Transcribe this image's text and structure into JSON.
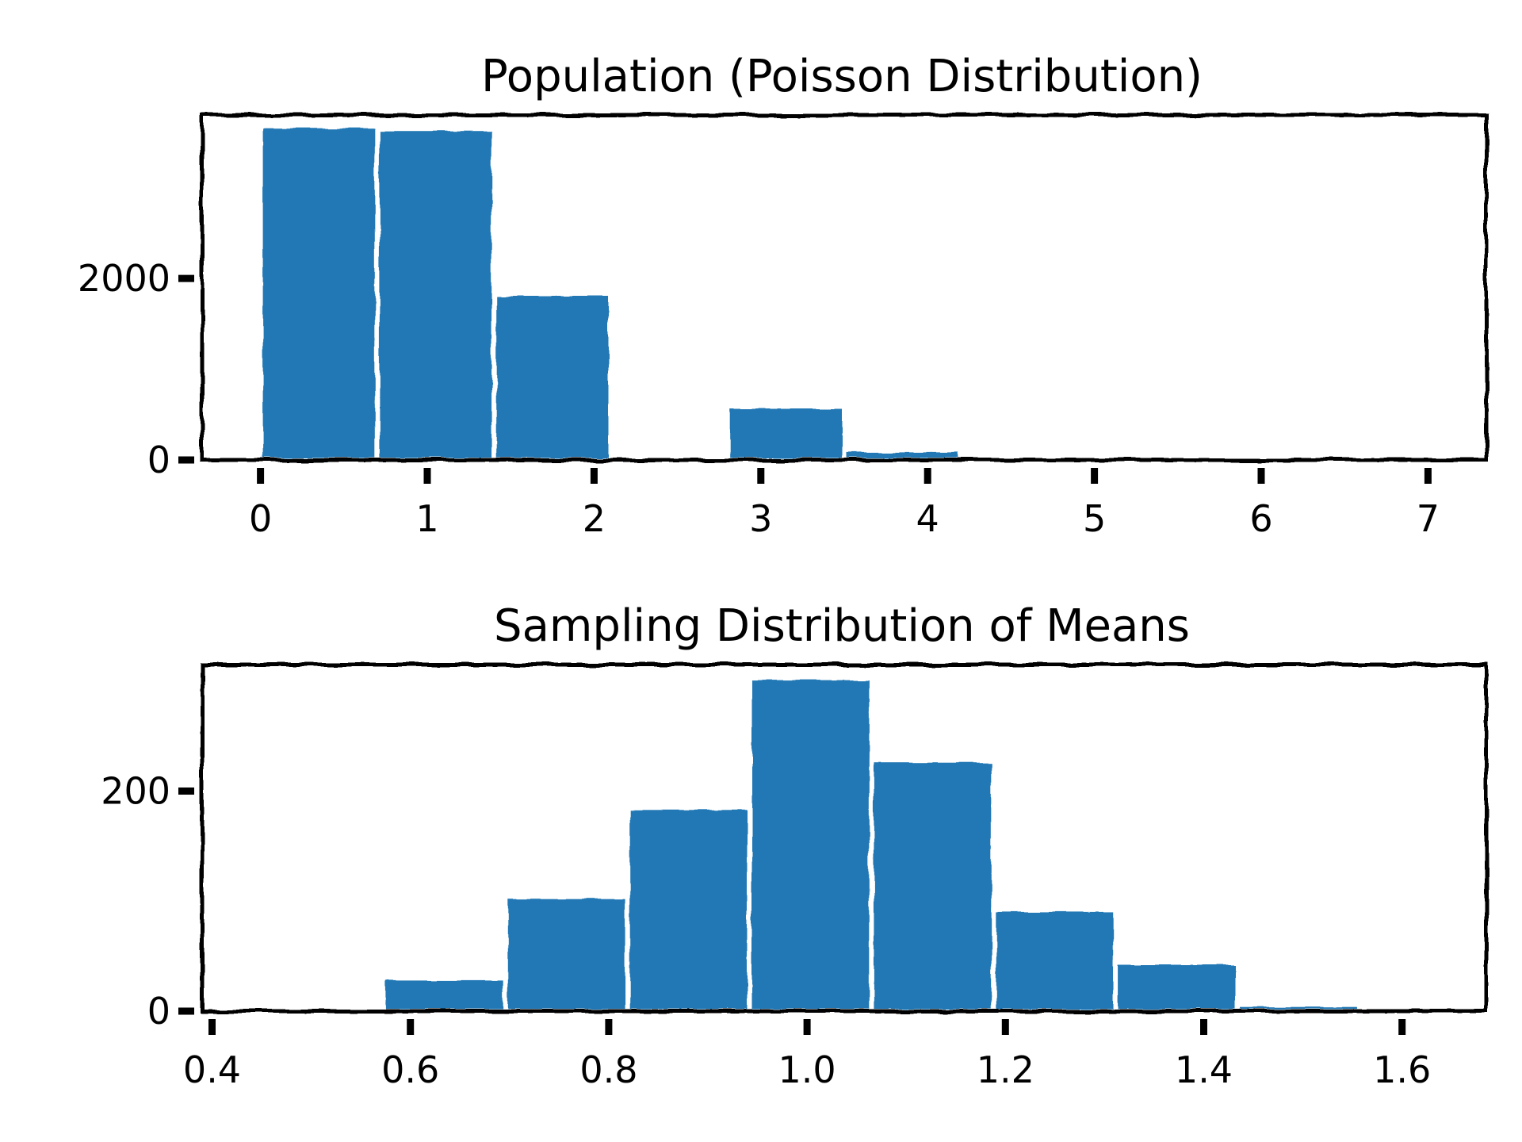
{
  "chart_data": [
    {
      "type": "bar",
      "title": "Population (Poisson Distribution)",
      "xlabel": "",
      "ylabel": "",
      "xlim": [
        -0.35,
        7.35
      ],
      "ylim": [
        0,
        3800
      ],
      "xticks": [
        0,
        1,
        2,
        3,
        4,
        5,
        6,
        7
      ],
      "xtick_labels": [
        "0",
        "1",
        "2",
        "3",
        "4",
        "5",
        "6",
        "7"
      ],
      "yticks": [
        0,
        2000
      ],
      "ytick_labels": [
        "0",
        "2000"
      ],
      "bin_width": 0.7,
      "bins": [
        {
          "x0": 0.0,
          "x1": 0.7,
          "value": 3680
        },
        {
          "x0": 0.7,
          "x1": 1.4,
          "value": 3650
        },
        {
          "x0": 1.4,
          "x1": 2.1,
          "value": 1830
        },
        {
          "x0": 2.1,
          "x1": 2.8,
          "value": 0
        },
        {
          "x0": 2.8,
          "x1": 3.5,
          "value": 590
        },
        {
          "x0": 3.5,
          "x1": 4.2,
          "value": 110
        },
        {
          "x0": 4.2,
          "x1": 4.9,
          "value": 0
        },
        {
          "x0": 4.9,
          "x1": 5.6,
          "value": 0
        },
        {
          "x0": 5.6,
          "x1": 6.3,
          "value": 0
        },
        {
          "x0": 6.3,
          "x1": 7.0,
          "value": 0
        }
      ],
      "color": "#2278b5",
      "grid": false,
      "style": "xkcd"
    },
    {
      "type": "bar",
      "title": "Sampling Distribution of Means",
      "xlabel": "",
      "ylabel": "",
      "xlim": [
        0.39,
        1.685
      ],
      "ylim": [
        0,
        315
      ],
      "xticks": [
        0.4,
        0.6,
        0.8,
        1.0,
        1.2,
        1.4,
        1.6
      ],
      "xtick_labels": [
        "0.4",
        "0.6",
        "0.8",
        "1.0",
        "1.2",
        "1.4",
        "1.6"
      ],
      "yticks": [
        0,
        200
      ],
      "ytick_labels": [
        "0",
        "200"
      ],
      "bin_width": 0.123,
      "bins": [
        {
          "x0": 0.45,
          "x1": 0.573,
          "value": 0
        },
        {
          "x0": 0.573,
          "x1": 0.696,
          "value": 30
        },
        {
          "x0": 0.696,
          "x1": 0.819,
          "value": 104
        },
        {
          "x0": 0.819,
          "x1": 0.942,
          "value": 185
        },
        {
          "x0": 0.942,
          "x1": 1.065,
          "value": 303
        },
        {
          "x0": 1.065,
          "x1": 1.188,
          "value": 228
        },
        {
          "x0": 1.188,
          "x1": 1.311,
          "value": 92
        },
        {
          "x0": 1.311,
          "x1": 1.434,
          "value": 44
        },
        {
          "x0": 1.434,
          "x1": 1.557,
          "value": 6
        }
      ],
      "color": "#2278b5",
      "grid": false,
      "style": "xkcd"
    }
  ]
}
